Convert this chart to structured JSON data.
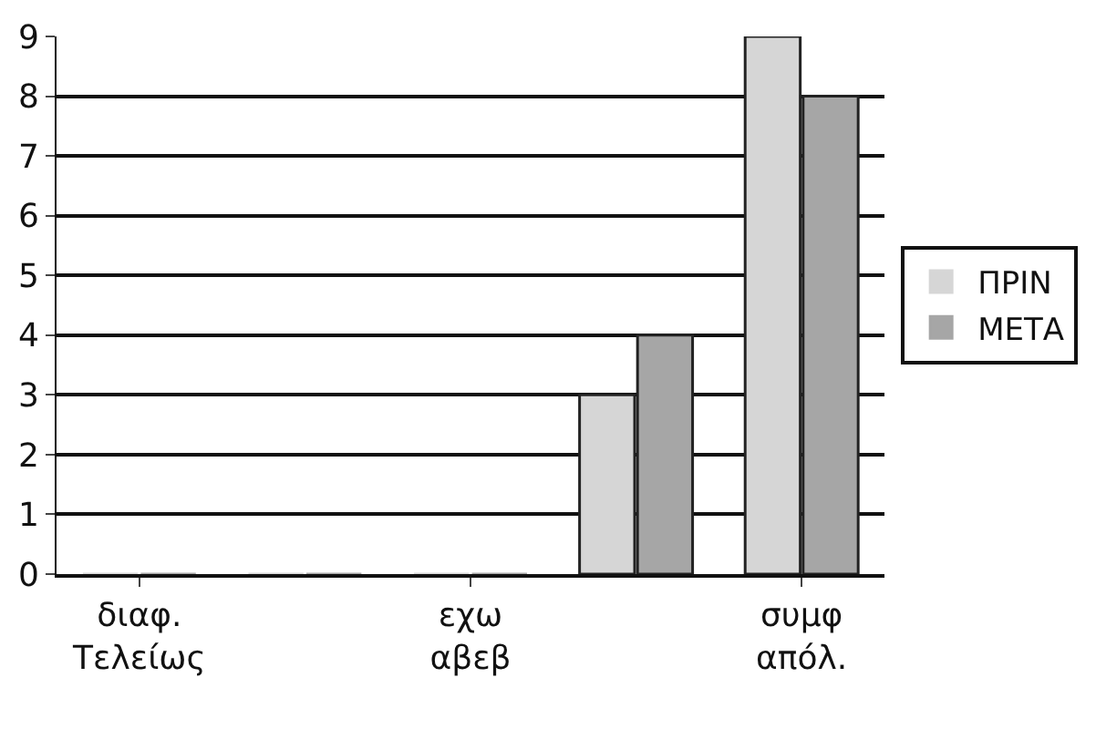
{
  "chart_data": {
    "type": "bar",
    "categories": [
      "διαφ. Τελείως",
      null,
      "εχω αβεβ",
      null,
      "συμφ απόλ."
    ],
    "series": [
      {
        "name": "ΠΡΙΝ",
        "color": "#d6d6d6",
        "values": [
          0,
          0,
          0,
          3,
          9
        ]
      },
      {
        "name": "ΜΕΤΑ",
        "color": "#a6a6a6",
        "values": [
          0,
          0,
          0,
          4,
          8
        ]
      }
    ],
    "ylim": [
      0,
      9
    ],
    "yticks": [
      0,
      1,
      2,
      3,
      4,
      5,
      6,
      7,
      8,
      9
    ],
    "grid": "y",
    "legend": "right"
  }
}
